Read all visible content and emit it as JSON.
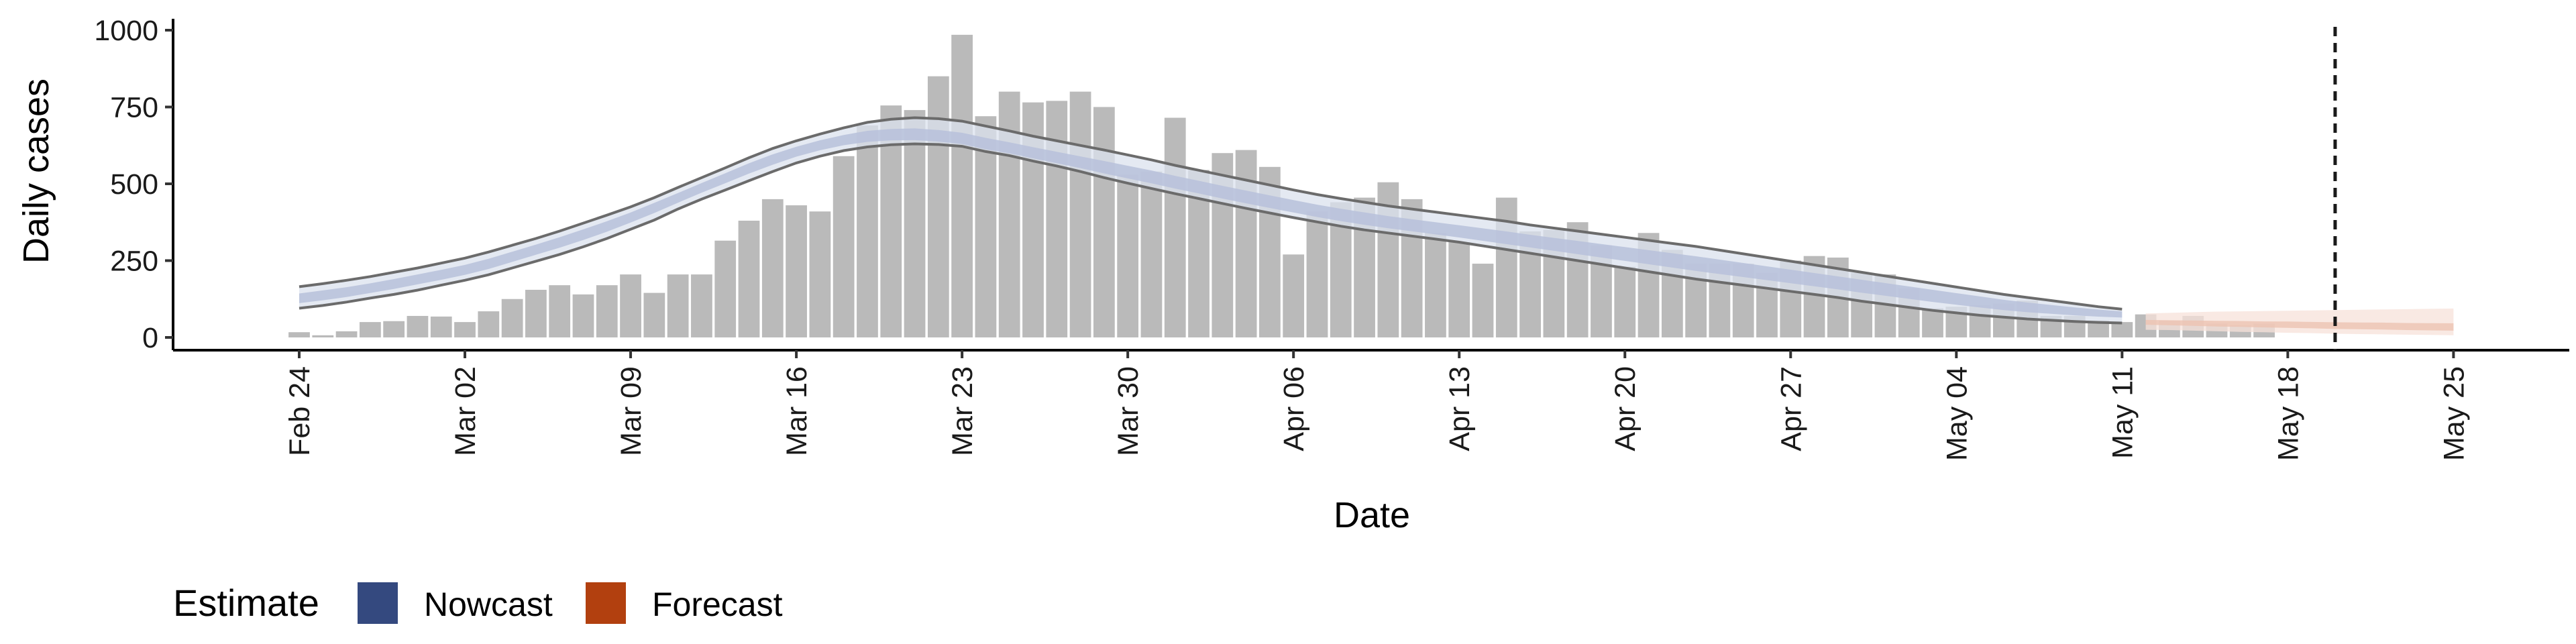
{
  "chart_data": {
    "type": "bar",
    "xlabel": "Date",
    "ylabel": "Daily cases",
    "ylim": [
      0,
      1000
    ],
    "yticks": [
      0,
      250,
      500,
      750,
      1000
    ],
    "xticks": [
      "Feb 24",
      "Mar 02",
      "Mar 09",
      "Mar 16",
      "Mar 23",
      "Mar 30",
      "Apr 06",
      "Apr 13",
      "Apr 20",
      "Apr 27",
      "May 04",
      "May 11",
      "May 18",
      "May 25"
    ],
    "grid": false,
    "date_range": [
      "2020-02-24",
      "2020-05-25"
    ],
    "cutoff_date": "2020-05-20",
    "bar_dates_start": "2020-02-24",
    "bar_values": [
      17,
      7,
      20,
      50,
      53,
      70,
      68,
      50,
      85,
      125,
      155,
      170,
      140,
      170,
      205,
      145,
      205,
      205,
      315,
      380,
      450,
      430,
      410,
      590,
      690,
      755,
      740,
      850,
      985,
      720,
      800,
      765,
      770,
      800,
      750,
      530,
      540,
      715,
      545,
      600,
      610,
      555,
      270,
      410,
      440,
      455,
      505,
      450,
      340,
      310,
      240,
      455,
      345,
      350,
      375,
      300,
      230,
      340,
      285,
      240,
      240,
      240,
      210,
      250,
      265,
      260,
      210,
      205,
      160,
      95,
      100,
      105,
      110,
      120,
      70,
      70,
      55,
      50,
      75,
      55,
      70,
      45,
      40,
      45
    ],
    "nowcast": {
      "start": "2020-02-24",
      "end": "2020-05-11",
      "median": [
        125,
        135,
        145,
        158,
        172,
        188,
        202,
        218,
        238,
        262,
        286,
        310,
        335,
        362,
        392,
        424,
        455,
        488,
        520,
        552,
        580,
        605,
        625,
        640,
        650,
        653,
        652,
        645,
        635,
        618,
        605,
        590,
        575,
        560,
        545,
        530,
        515,
        498,
        482,
        465,
        450,
        435,
        420,
        405,
        392,
        380,
        368,
        358,
        348,
        338,
        328,
        318,
        308,
        298,
        288,
        278,
        268,
        258,
        248,
        238,
        228,
        218,
        208,
        198,
        188,
        178,
        168,
        158,
        148,
        138,
        128,
        118,
        108,
        100,
        94,
        88,
        83,
        79
      ],
      "lower90": [
        95,
        104,
        115,
        128,
        140,
        154,
        170,
        186,
        204,
        226,
        248,
        270,
        295,
        322,
        352,
        382,
        418,
        450,
        480,
        510,
        540,
        568,
        590,
        608,
        620,
        627,
        630,
        628,
        622,
        605,
        592,
        574,
        558,
        540,
        520,
        502,
        485,
        468,
        452,
        436,
        420,
        405,
        390,
        376,
        362,
        350,
        340,
        330,
        320,
        310,
        298,
        286,
        274,
        262,
        250,
        238,
        226,
        214,
        202,
        190,
        180,
        170,
        160,
        150,
        140,
        130,
        118,
        108,
        98,
        88,
        80,
        72,
        66,
        60,
        56,
        52,
        49,
        47
      ],
      "upper90": [
        165,
        175,
        186,
        198,
        212,
        226,
        242,
        258,
        278,
        300,
        322,
        346,
        372,
        398,
        425,
        455,
        488,
        520,
        552,
        585,
        615,
        640,
        662,
        682,
        700,
        710,
        715,
        712,
        704,
        688,
        672,
        655,
        640,
        625,
        610,
        594,
        578,
        560,
        544,
        528,
        512,
        496,
        480,
        465,
        452,
        440,
        428,
        418,
        408,
        398,
        388,
        378,
        366,
        356,
        346,
        336,
        326,
        316,
        306,
        296,
        284,
        272,
        260,
        248,
        236,
        224,
        212,
        200,
        188,
        176,
        164,
        152,
        140,
        130,
        120,
        110,
        100,
        92
      ]
    },
    "forecast": {
      "start": "2020-05-12",
      "end": "2020-05-25",
      "median": [
        50,
        48,
        46,
        44,
        43,
        41,
        40,
        38,
        36,
        35,
        34,
        32,
        31,
        30
      ],
      "lower": [
        25,
        24,
        22,
        20,
        18,
        17,
        15,
        14,
        12,
        11,
        10,
        9,
        8,
        7
      ],
      "upper": [
        78,
        80,
        82,
        84,
        85,
        86,
        87,
        88,
        89,
        90,
        91,
        92,
        93,
        94
      ]
    },
    "legend": {
      "title": "Estimate",
      "placement": "bottom-left",
      "items": [
        {
          "label": "Nowcast",
          "color": "#34497f"
        },
        {
          "label": "Forecast",
          "color": "#b2400f"
        }
      ]
    },
    "colors": {
      "bars": "#bababa",
      "nowcast_band_outer": "#dbe1ee",
      "nowcast_band_inner": "#b7c1da",
      "nowcast_line": "#6b6b6b",
      "forecast_band_outer": "#f7e2d9",
      "forecast_band_inner": "#ecc3b2",
      "cutoff_line": "#1a1a1a"
    }
  }
}
